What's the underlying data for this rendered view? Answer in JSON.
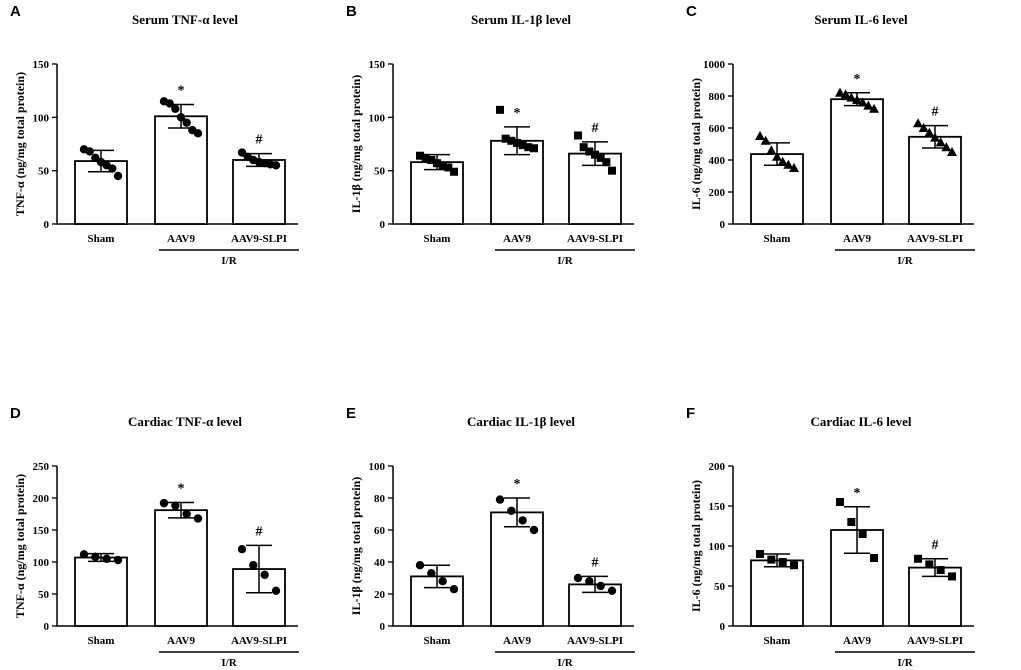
{
  "chart_data": [
    {
      "panel": "A",
      "type": "bar",
      "title": "Serum TNF-α level",
      "ylabel": "TNF-α (ng/mg total protein)",
      "ylim": [
        0,
        150
      ],
      "yticks": [
        "0",
        "50",
        "100",
        "150"
      ],
      "categories": [
        "Sham",
        "AAV9",
        "AAV9-SLPI"
      ],
      "group_label": "I/R",
      "values": [
        59,
        101,
        60
      ],
      "errors": [
        10,
        11,
        6
      ],
      "marker": "circle",
      "sig": [
        "",
        "*",
        "#"
      ],
      "points": [
        [
          70,
          68,
          62,
          58,
          55,
          52,
          45
        ],
        [
          115,
          113,
          108,
          100,
          95,
          88,
          85
        ],
        [
          67,
          63,
          60,
          58,
          57,
          56,
          55
        ]
      ]
    },
    {
      "panel": "B",
      "type": "bar",
      "title": "Serum IL-1β level",
      "ylabel": "IL-1β (ng/mg total protein)",
      "ylim": [
        0,
        150
      ],
      "yticks": [
        "0",
        "50",
        "100",
        "150"
      ],
      "categories": [
        "Sham",
        "AAV9",
        "AAV9-SLPI"
      ],
      "group_label": "I/R",
      "values": [
        58,
        78,
        66
      ],
      "errors": [
        7,
        13,
        11
      ],
      "marker": "square",
      "sig": [
        "",
        "*",
        "#"
      ],
      "points": [
        [
          64,
          62,
          60,
          57,
          55,
          53,
          49
        ],
        [
          107,
          80,
          78,
          76,
          74,
          72,
          71
        ],
        [
          83,
          72,
          68,
          65,
          62,
          58,
          50
        ]
      ]
    },
    {
      "panel": "C",
      "type": "bar",
      "title": "Serum IL-6 level",
      "ylabel": "IL-6 (ng/mg total protein)",
      "ylim": [
        0,
        1000
      ],
      "yticks": [
        "0",
        "200",
        "400",
        "600",
        "800",
        "1000"
      ],
      "categories": [
        "Sham",
        "AAV9",
        "AAV9-SLPI"
      ],
      "group_label": "I/R",
      "values": [
        437,
        780,
        545
      ],
      "errors": [
        70,
        40,
        70
      ],
      "marker": "triangle",
      "sig": [
        "",
        "*",
        "#"
      ],
      "points": [
        [
          550,
          520,
          460,
          420,
          390,
          370,
          350
        ],
        [
          820,
          810,
          790,
          775,
          760,
          740,
          720
        ],
        [
          630,
          600,
          570,
          540,
          510,
          480,
          450
        ]
      ]
    },
    {
      "panel": "D",
      "type": "bar",
      "title": "Cardiac TNF-α level",
      "ylabel": "TNF-α (ng/mg total protein)",
      "ylim": [
        0,
        250
      ],
      "yticks": [
        "0",
        "50",
        "100",
        "150",
        "200",
        "250"
      ],
      "categories": [
        "Sham",
        "AAV9",
        "AAV9-SLPI"
      ],
      "group_label": "I/R",
      "values": [
        107,
        181,
        89
      ],
      "errors": [
        6,
        12,
        37
      ],
      "marker": "circle",
      "sig": [
        "",
        "*",
        "#"
      ],
      "points": [
        [
          112,
          108,
          105,
          103
        ],
        [
          192,
          188,
          175,
          168
        ],
        [
          120,
          95,
          80,
          55
        ]
      ]
    },
    {
      "panel": "E",
      "type": "bar",
      "title": "Cardiac IL-1β level",
      "ylabel": "IL-1β (ng/mg total protein)",
      "ylim": [
        0,
        100
      ],
      "yticks": [
        "0",
        "20",
        "40",
        "60",
        "80",
        "100"
      ],
      "categories": [
        "Sham",
        "AAV9",
        "AAV9-SLPI"
      ],
      "group_label": "I/R",
      "values": [
        31,
        71,
        26
      ],
      "errors": [
        7,
        9,
        5
      ],
      "marker": "circle",
      "sig": [
        "",
        "*",
        "#"
      ],
      "points": [
        [
          38,
          33,
          28,
          23
        ],
        [
          79,
          72,
          66,
          60
        ],
        [
          30,
          28,
          25,
          22
        ]
      ]
    },
    {
      "panel": "F",
      "type": "bar",
      "title": "Cardiac IL-6 level",
      "ylabel": "IL-6 (ng/mg total protein)",
      "ylim": [
        0,
        200
      ],
      "yticks": [
        "0",
        "50",
        "100",
        "150",
        "200"
      ],
      "categories": [
        "Sham",
        "AAV9",
        "AAV9-SLPI"
      ],
      "group_label": "I/R",
      "values": [
        82,
        120,
        73
      ],
      "errors": [
        8,
        29,
        11
      ],
      "marker": "square",
      "sig": [
        "",
        "*",
        "#"
      ],
      "points": [
        [
          90,
          83,
          80,
          76
        ],
        [
          155,
          130,
          115,
          85
        ],
        [
          84,
          77,
          70,
          62
        ]
      ]
    }
  ]
}
